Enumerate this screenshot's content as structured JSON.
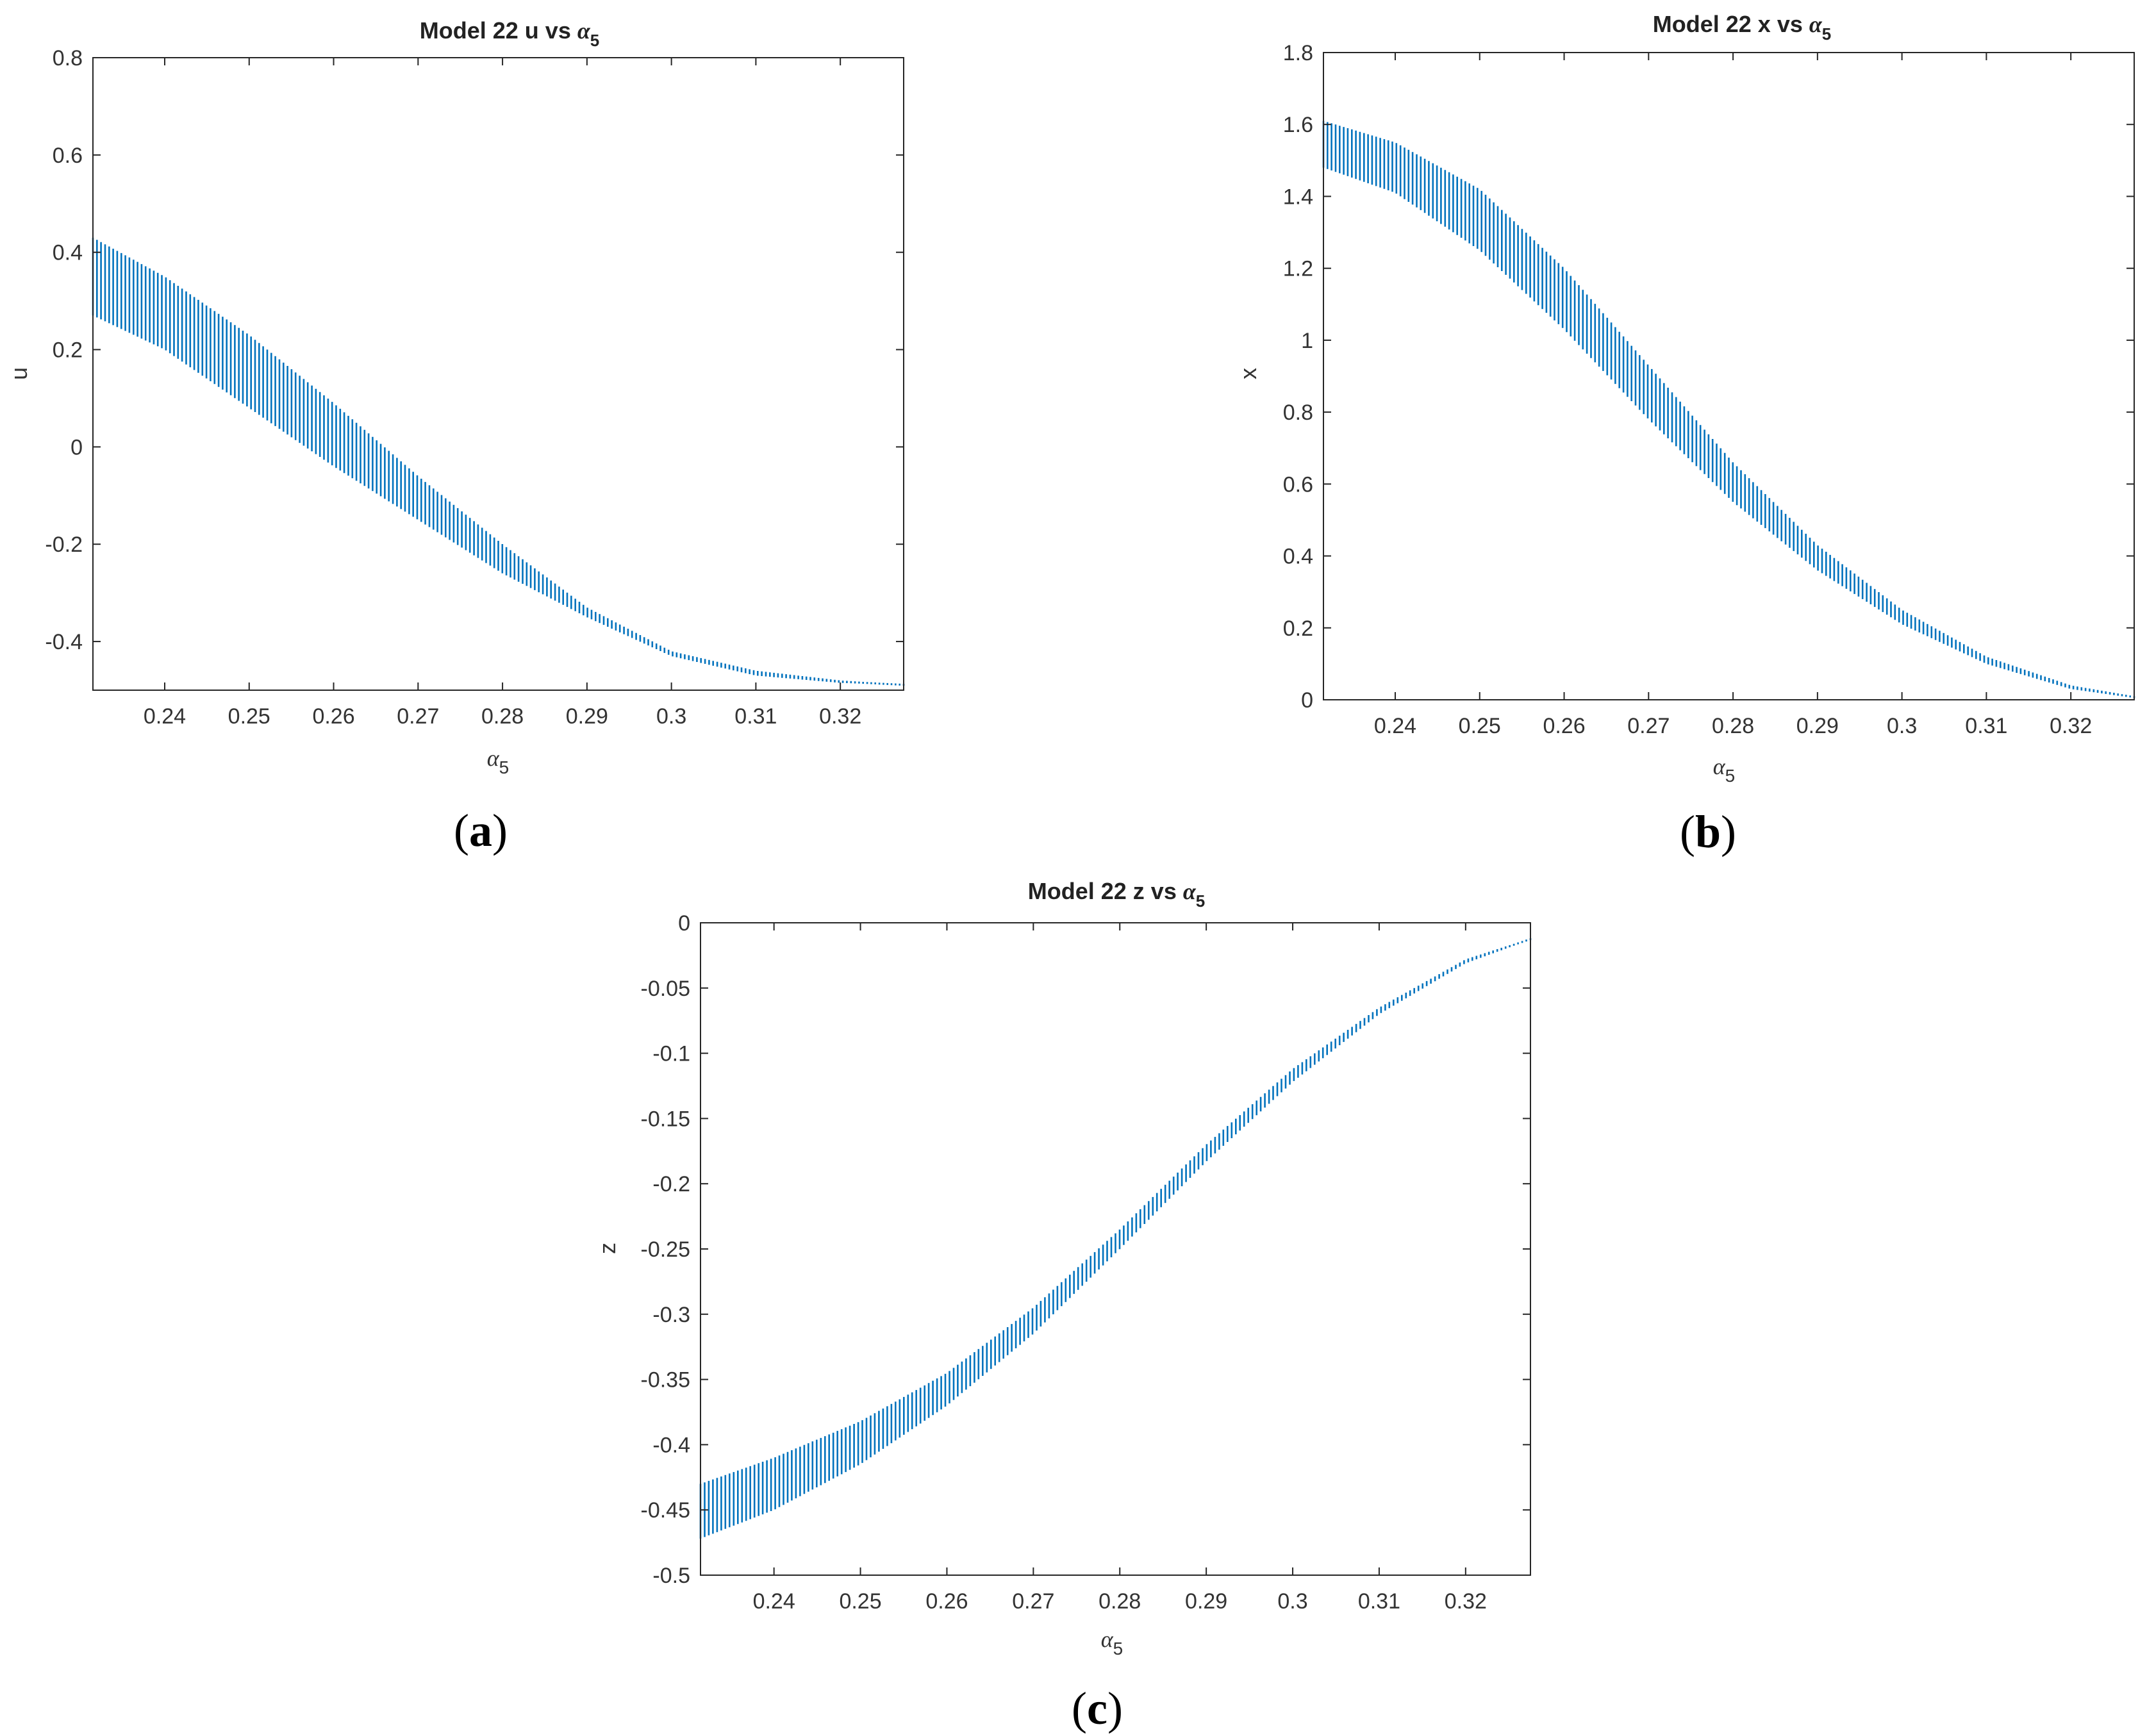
{
  "figure": {
    "panel_labels": [
      {
        "open": "(",
        "letter": "a",
        "close": ")"
      },
      {
        "open": "(",
        "letter": "b",
        "close": ")"
      },
      {
        "open": "(",
        "letter": "c",
        "close": ")"
      }
    ]
  },
  "colors": {
    "series": "#0072BD",
    "axes": "#262626"
  },
  "chart_data": [
    {
      "type": "scatter",
      "title": "Model 22 u vs α5",
      "title_parts": {
        "prefix": "Model 22 u vs ",
        "symbol": "α",
        "subscript": "5"
      },
      "xlabel": "α5",
      "xlabel_parts": {
        "symbol": "α",
        "subscript": "5"
      },
      "ylabel": "u",
      "xlim": [
        0.2315,
        0.3275
      ],
      "ylim": [
        -0.5,
        0.8
      ],
      "xticks": [
        "0.24",
        "0.25",
        "0.26",
        "0.27",
        "0.28",
        "0.29",
        "0.3",
        "0.31",
        "0.32"
      ],
      "yticks": [
        "-0.4",
        "-0.2",
        "0",
        "0.2",
        "0.4",
        "0.6",
        "0.8"
      ],
      "band": {
        "x": [
          0.2315,
          0.24,
          0.25,
          0.26,
          0.27,
          0.28,
          0.29,
          0.3,
          0.31,
          0.32,
          0.3275
        ],
        "y_upper": [
          0.43,
          0.35,
          0.23,
          0.09,
          -0.06,
          -0.2,
          -0.33,
          -0.42,
          -0.46,
          -0.48,
          -0.488
        ],
        "y_lower": [
          0.27,
          0.2,
          0.08,
          -0.04,
          -0.15,
          -0.26,
          -0.35,
          -0.43,
          -0.47,
          -0.485,
          -0.49
        ]
      }
    },
    {
      "type": "scatter",
      "title": "Model 22 x vs α5",
      "title_parts": {
        "prefix": "Model 22 x vs ",
        "symbol": "α",
        "subscript": "5"
      },
      "xlabel": "α5",
      "xlabel_parts": {
        "symbol": "α",
        "subscript": "5"
      },
      "ylabel": "x",
      "xlim": [
        0.2315,
        0.3275
      ],
      "ylim": [
        0,
        1.8
      ],
      "xticks": [
        "0.24",
        "0.25",
        "0.26",
        "0.27",
        "0.28",
        "0.29",
        "0.3",
        "0.31",
        "0.32"
      ],
      "yticks": [
        "0",
        "0.2",
        "0.4",
        "0.6",
        "0.8",
        "1",
        "1.2",
        "1.4",
        "1.6",
        "1.8"
      ],
      "band": {
        "x": [
          0.2315,
          0.24,
          0.25,
          0.26,
          0.27,
          0.28,
          0.29,
          0.3,
          0.31,
          0.32,
          0.3275
        ],
        "y_upper": [
          1.61,
          1.55,
          1.42,
          1.2,
          0.93,
          0.66,
          0.43,
          0.25,
          0.12,
          0.04,
          0.01
        ],
        "y_lower": [
          1.48,
          1.41,
          1.25,
          1.03,
          0.78,
          0.55,
          0.36,
          0.21,
          0.1,
          0.03,
          0.005
        ]
      }
    },
    {
      "type": "scatter",
      "title": "Model 22 z vs α5",
      "title_parts": {
        "prefix": "Model 22 z vs ",
        "symbol": "α",
        "subscript": "5"
      },
      "xlabel": "α5",
      "xlabel_parts": {
        "symbol": "α",
        "subscript": "5"
      },
      "ylabel": "z",
      "xlim": [
        0.2315,
        0.3275
      ],
      "ylim": [
        -0.5,
        0
      ],
      "xticks": [
        "0.24",
        "0.25",
        "0.26",
        "0.27",
        "0.28",
        "0.29",
        "0.3",
        "0.31",
        "0.32"
      ],
      "yticks": [
        "-0.5",
        "-0.45",
        "-0.4",
        "-0.35",
        "-0.3",
        "-0.25",
        "-0.2",
        "-0.15",
        "-0.1",
        "-0.05",
        "0"
      ],
      "band": {
        "x": [
          0.2315,
          0.24,
          0.25,
          0.26,
          0.27,
          0.28,
          0.29,
          0.3,
          0.31,
          0.32,
          0.3275
        ],
        "y_upper": [
          -0.43,
          -0.41,
          -0.382,
          -0.345,
          -0.295,
          -0.235,
          -0.17,
          -0.112,
          -0.065,
          -0.028,
          -0.012
        ],
        "y_lower": [
          -0.472,
          -0.45,
          -0.415,
          -0.37,
          -0.315,
          -0.25,
          -0.183,
          -0.122,
          -0.07,
          -0.031,
          -0.013
        ]
      }
    }
  ]
}
